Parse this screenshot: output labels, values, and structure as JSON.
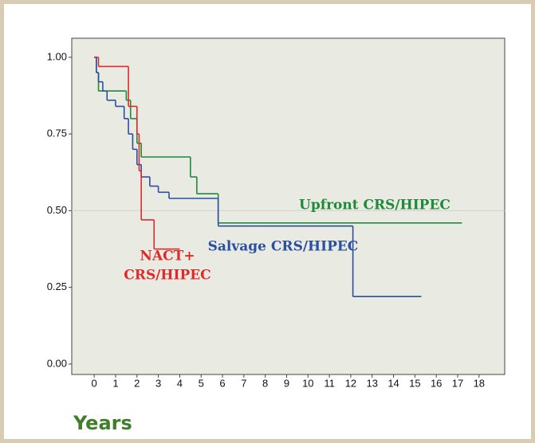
{
  "chart_data": {
    "type": "step",
    "x_label": "Years",
    "xlim": [
      -1.05,
      19.2
    ],
    "ylim": [
      -0.034,
      1.062
    ],
    "xticks": [
      0,
      1,
      2,
      3,
      4,
      5,
      6,
      7,
      8,
      9,
      10,
      11,
      12,
      13,
      14,
      15,
      16,
      17,
      18
    ],
    "yticks": [
      {
        "value": 0,
        "label": "0.00"
      },
      {
        "value": 0.25,
        "label": "0.25"
      },
      {
        "value": 0.5,
        "label": "0.50"
      },
      {
        "value": 0.75,
        "label": "0.75"
      },
      {
        "value": 1,
        "label": "1.00"
      }
    ],
    "reference_line": 0.5,
    "series": [
      {
        "label_lines": [
          "Upfront CRS/HIPEC"
        ],
        "color": "#1e8a3a",
        "x": [
          0,
          0.1,
          0.2,
          1.5,
          1.7,
          2.0,
          2.2,
          4.5,
          4.8,
          5.8,
          17.2
        ],
        "y": [
          1,
          0.95,
          0.89,
          0.86,
          0.8,
          0.72,
          0.675,
          0.61,
          0.555,
          0.46,
          0.46
        ]
      },
      {
        "label_lines": [
          "Salvage CRS/HIPEC"
        ],
        "color": "#2b4fa0",
        "x": [
          0,
          0.1,
          0.2,
          0.4,
          0.6,
          1.0,
          1.4,
          1.6,
          1.8,
          2.0,
          2.2,
          2.6,
          3.0,
          3.5,
          5.8,
          12.1,
          15.3
        ],
        "y": [
          1,
          0.95,
          0.92,
          0.89,
          0.86,
          0.84,
          0.8,
          0.75,
          0.7,
          0.65,
          0.61,
          0.58,
          0.56,
          0.54,
          0.45,
          0.22,
          0.22
        ]
      },
      {
        "label_lines": [
          "NACT+",
          "CRS/HIPEC"
        ],
        "color": "#e02a2a",
        "x": [
          0,
          0.2,
          1.6,
          2.0,
          2.1,
          2.2,
          2.8,
          4.0
        ],
        "y": [
          1,
          0.97,
          0.84,
          0.75,
          0.63,
          0.47,
          0.375,
          0.375
        ]
      }
    ]
  }
}
